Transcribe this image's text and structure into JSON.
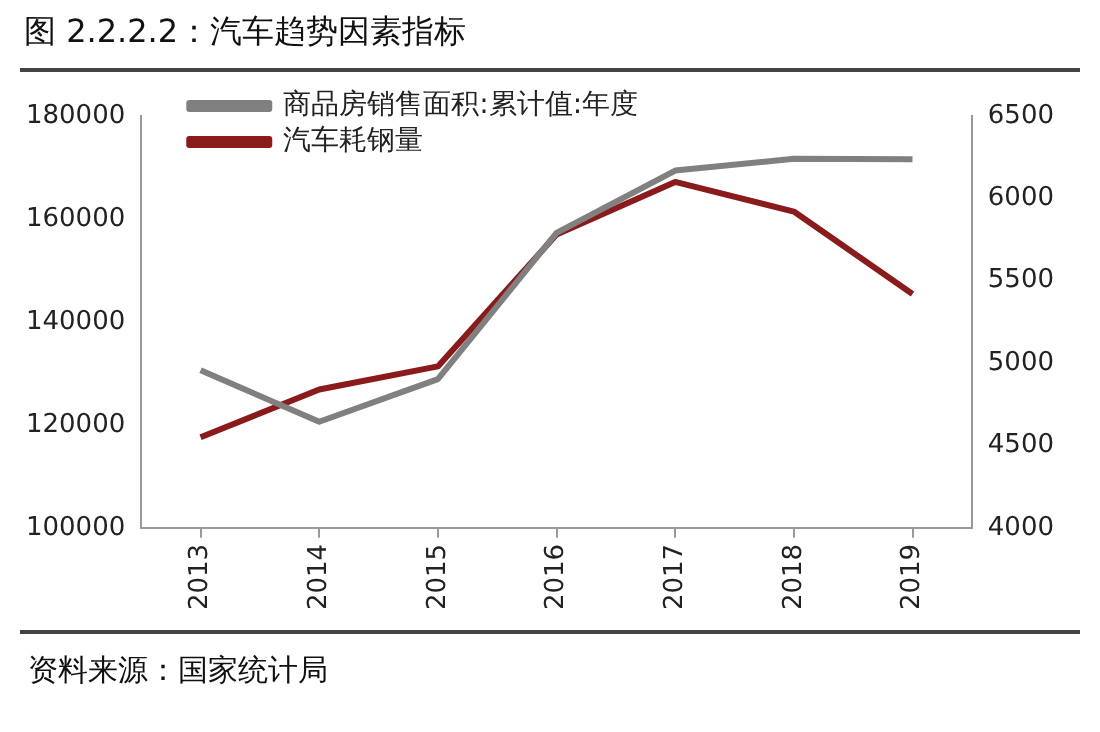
{
  "chart_data": {
    "type": "line",
    "title": "图 2.2.2.2：汽车趋势因素指标",
    "categories": [
      "2013",
      "2014",
      "2015",
      "2016",
      "2017",
      "2018",
      "2019"
    ],
    "series": [
      {
        "name": "商品房销售面积:累计值:年度",
        "color": "#808080",
        "values": [
          130600,
          120600,
          128900,
          157300,
          169400,
          171700,
          171600
        ]
      },
      {
        "name": "汽车耗钢量",
        "color": "#8b1a1a",
        "axis": "y2",
        "values": [
          4550,
          4840,
          4980,
          5780,
          6100,
          5920,
          5420
        ]
      }
    ],
    "ylim": [
      100000,
      180000
    ],
    "yticks": [
      100000,
      120000,
      140000,
      160000,
      180000
    ],
    "y2lim": [
      4000,
      6500
    ],
    "y2ticks": [
      4000,
      4500,
      5000,
      5500,
      6000,
      6500
    ],
    "grid": false,
    "legend": "top left",
    "marker": "none",
    "line_style": "solid",
    "annotations": [
      "资料来源：国家统计局"
    ]
  }
}
